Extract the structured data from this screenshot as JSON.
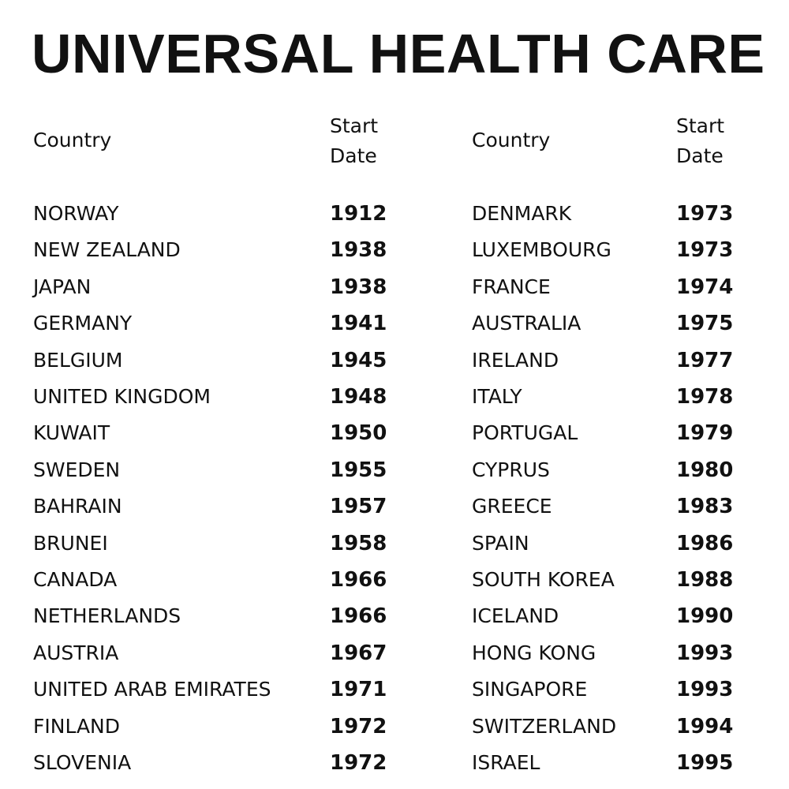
{
  "title": "UNIVERSAL HEALTH CARE",
  "tables": [
    {
      "headers": [
        "Country",
        "Start Date"
      ],
      "rows": [
        [
          "NORWAY",
          1912
        ],
        [
          "NEW ZEALAND",
          1938
        ],
        [
          "JAPAN",
          1938
        ],
        [
          "GERMANY",
          1941
        ],
        [
          "BELGIUM",
          1945
        ],
        [
          "UNITED KINGDOM",
          1948
        ],
        [
          "KUWAIT",
          1950
        ],
        [
          "SWEDEN",
          1955
        ],
        [
          "BAHRAIN",
          1957
        ],
        [
          "BRUNEI",
          1958
        ],
        [
          "CANADA",
          1966
        ],
        [
          "NETHERLANDS",
          1966
        ],
        [
          "AUSTRIA",
          1967
        ],
        [
          "UNITED ARAB EMIRATES",
          1971
        ],
        [
          "FINLAND",
          1972
        ],
        [
          "SLOVENIA",
          1972
        ]
      ]
    },
    {
      "headers": [
        "Country",
        "Start Date"
      ],
      "rows": [
        [
          "DENMARK",
          1973
        ],
        [
          "LUXEMBOURG",
          1973
        ],
        [
          "FRANCE",
          1974
        ],
        [
          "AUSTRALIA",
          1975
        ],
        [
          "IRELAND",
          1977
        ],
        [
          "ITALY",
          1978
        ],
        [
          "PORTUGAL",
          1979
        ],
        [
          "CYPRUS",
          1980
        ],
        [
          "GREECE",
          1983
        ],
        [
          "SPAIN",
          1986
        ],
        [
          "SOUTH KOREA",
          1988
        ],
        [
          "ICELAND",
          1990
        ],
        [
          "HONG KONG",
          1993
        ],
        [
          "SINGAPORE",
          1993
        ],
        [
          "SWITZERLAND",
          1994
        ],
        [
          "ISRAEL",
          1995
        ]
      ]
    }
  ]
}
